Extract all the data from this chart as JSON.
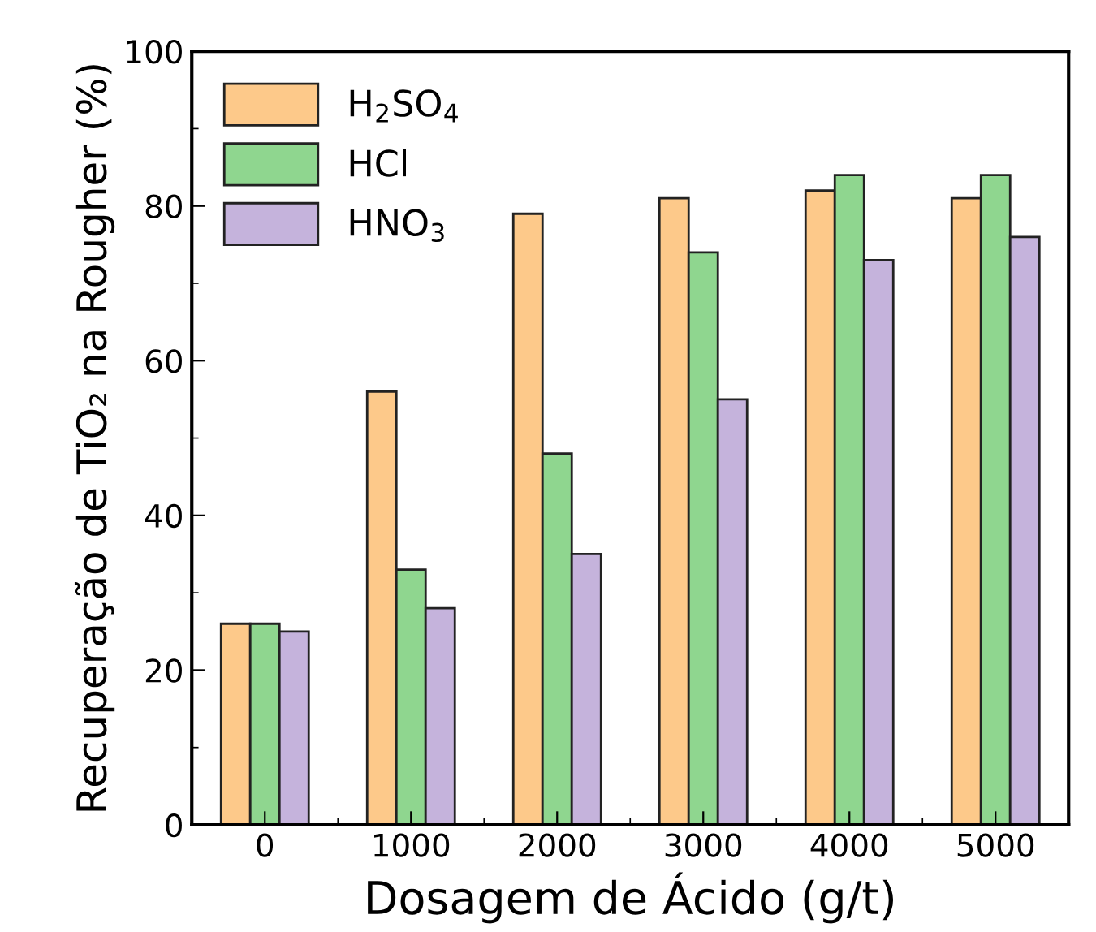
{
  "chart_data": {
    "type": "bar",
    "xlabel": "Dosagem de Ácido (g/t)",
    "ylabel": "Recuperação de TiO₂ na Rougher (%)",
    "categories": [
      "0",
      "1000",
      "2000",
      "3000",
      "4000",
      "5000"
    ],
    "series": [
      {
        "name": "H$_{2}$SO$_{4}$",
        "color": "#fdc98a",
        "values": [
          26,
          56,
          79,
          81,
          82,
          81
        ]
      },
      {
        "name": "HCl",
        "color": "#8fd68f",
        "values": [
          26,
          33,
          48,
          74,
          84,
          84
        ]
      },
      {
        "name": "HNO$_{3}$",
        "color": "#c5b3dc",
        "values": [
          25,
          28,
          35,
          55,
          73,
          76
        ]
      }
    ],
    "ylim": [
      0,
      100
    ],
    "yticks": [
      0,
      20,
      40,
      60,
      80,
      100
    ],
    "grid": false,
    "legend": "top left"
  }
}
